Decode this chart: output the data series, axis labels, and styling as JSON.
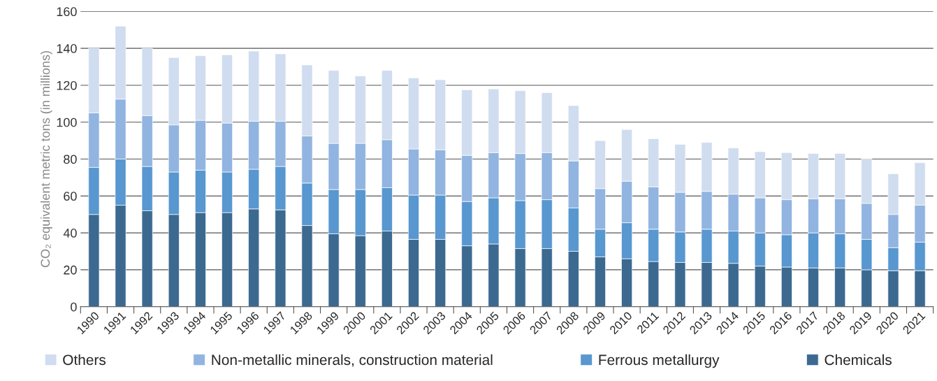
{
  "chart_data": {
    "type": "bar",
    "stacked": true,
    "ylabel": "CO₂ equivalent metric tons (in millions)",
    "categories": [
      "1990",
      "1991",
      "1992",
      "1993",
      "1994",
      "1995",
      "1996",
      "1997",
      "1998",
      "1999",
      "2000",
      "2001",
      "2002",
      "2003",
      "2004",
      "2005",
      "2006",
      "2007",
      "2008",
      "2009",
      "2010",
      "2011",
      "2012",
      "2013",
      "2014",
      "2015",
      "2016",
      "2017",
      "2018",
      "2019",
      "2020",
      "2021"
    ],
    "series": [
      {
        "name": "Chemicals",
        "color": "#3c6990",
        "values": [
          50,
          55,
          52,
          50,
          51,
          51,
          53,
          52.5,
          44,
          39.5,
          38.5,
          41,
          36.5,
          36.5,
          33,
          34,
          31.5,
          31.5,
          30,
          27,
          26,
          24.5,
          24,
          24,
          23.5,
          22,
          21.5,
          21,
          21,
          20,
          19.5,
          19.5
        ]
      },
      {
        "name": "Ferrous metallurgy",
        "color": "#5897d0",
        "values": [
          25.5,
          25,
          24,
          23,
          23,
          22,
          21.5,
          23.5,
          23,
          24,
          25,
          23.5,
          24,
          24,
          24,
          25,
          26,
          26.5,
          23.5,
          15,
          19.5,
          17.5,
          16.5,
          18,
          17.5,
          18,
          17.5,
          19,
          18.5,
          16.5,
          12.5,
          15.5
        ]
      },
      {
        "name": "Non-metallic minerals, construction material",
        "color": "#91b4e0",
        "values": [
          29.5,
          32.5,
          27.5,
          25.5,
          27,
          26.5,
          26,
          24.5,
          25.5,
          25,
          25,
          26,
          25,
          24.5,
          25,
          24.5,
          25.5,
          25.5,
          25.5,
          22,
          22.5,
          23,
          21.5,
          20.5,
          20,
          19,
          19,
          18.5,
          19,
          19.5,
          18,
          20
        ]
      },
      {
        "name": "Others",
        "color": "#d0dcef",
        "values": [
          35,
          39.5,
          36.5,
          36.5,
          35,
          37,
          38,
          36.5,
          38.5,
          39.5,
          36.5,
          37.5,
          38.5,
          38,
          35.5,
          34.5,
          34,
          32.5,
          30,
          26,
          28,
          26,
          26,
          26.5,
          25,
          25,
          25.5,
          24.5,
          24.5,
          24,
          22,
          23
        ]
      }
    ],
    "ylim": [
      0,
      160
    ],
    "yticks": [
      0,
      20,
      40,
      60,
      80,
      100,
      120,
      140,
      160
    ],
    "grid": "y",
    "legend": "bottom"
  }
}
